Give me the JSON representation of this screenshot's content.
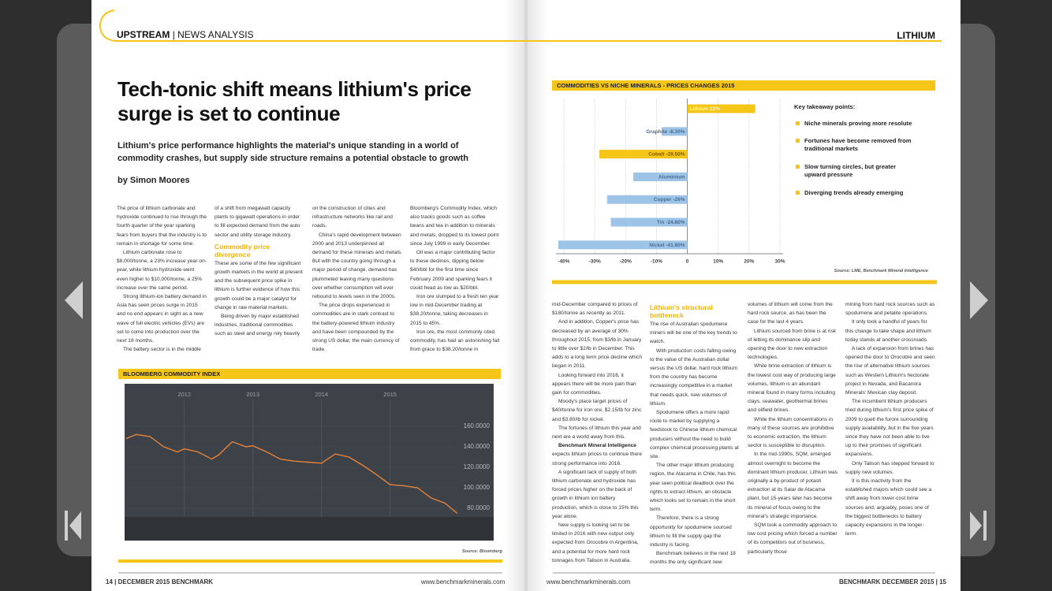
{
  "header": {
    "section": "UPSTREAM",
    "section_sub": "| NEWS ANALYSIS",
    "right": "LITHIUM"
  },
  "article": {
    "headline": [
      "Tech-tonic shift means lithium's price",
      "surge is set to continue"
    ],
    "standfirst": [
      "Lithium's price performance highlights the material's unique standing in a world of",
      "commodity crashes, but supply side structure remains a potential obstacle to growth"
    ],
    "byline": "by Simon Moores"
  },
  "left_columns": [
    [
      {
        "text": "The price of lithium carbonate and hydroxide continued to rise through the fourth quarter of the year sparking fears from buyers that the industry is to remain in shortage for some time."
      },
      {
        "text": "Lithium carbonate rose to $8,000/tonne, a 23% increase year-on-year, while lithium hydroxide went even higher to $10,000/tonne, a 25% increase over the same period."
      },
      {
        "text": "Strong lithium-ion battery demand in Asia has seen prices surge in 2015 and no end appears in sight as a new wave of full electric vehicles (EVs) are set to come into production over the next 18 months."
      },
      {
        "text": "The battery sector is in the middle"
      }
    ],
    [
      {
        "text": "of a shift from megawatt capacity plants to gigawatt operations in order to fill expected demand from the auto sector and utility storage industry."
      },
      {
        "subhead": "Commodity price divergence"
      },
      {
        "text": "These are some of the few significant growth markets in the world at present and the subsequent price spike in lithium is further evidence of how this growth could be a major catalyst for change in raw material markets."
      },
      {
        "text": "Being driven by major established industries, traditional commodities such as steel and energy rely heavily"
      }
    ],
    [
      {
        "text": "on the construction of cities and infrastructure networks like rail and roads."
      },
      {
        "text": "China's rapid development between 2000 and 2013 underpinned all demand for these minerals and metals. But with the country going through a major period of change, demand has plummeted leaving many questions over whether consumption will ever rebound to levels seen in the 2000s."
      },
      {
        "text": "The price drops experienced in commodities are in stark contrast to the battery-powered lithium industry and have been compounded by the strong US dollar, the main currency of trade."
      }
    ],
    [
      {
        "text": "Bloomberg's Commodity Index, which also tracks goods such as coffee beans and tea in addition to minerals and metals, dropped to its lowest point since July 1999 in early December."
      },
      {
        "text": "Oil was a major contributing factor to these declines, dipping below $40/bbl for the first time since February 2009 and sparking fears it could head as low as $20/bbl."
      },
      {
        "text": "Iron ore slumped to a fresh ten year low in mid-December trading at $38.20/tonne, taking decreases in 2015 to 45%."
      },
      {
        "text": "Iron ore, the most commonly cited commodity, has had an astonishing fall from grace to $38.20/tonne in"
      }
    ]
  ],
  "right_columns": [
    [
      {
        "text": "mid-December compared to prices of $180/tonne as recently as 2011."
      },
      {
        "text": "And in addition, Copper's price has decreased by an average of 30% throughout 2015, from $3/lb in January to little over $2/lb in December. This adds to a long term price decline which began in 2011."
      },
      {
        "text": "Looking forward into 2016, it appears there will be more pain than gain for commodities."
      },
      {
        "text": "Moody's place target prices of $40/tonne for iron ore, $2.15/lb for zinc and $3.80/lb for nickel."
      },
      {
        "text": "The fortunes of lithium this year and next are a world away from this."
      },
      {
        "lead": "Benchmark Mineral Intelligence",
        "text": "expects lithium prices to continue there strong performance into 2016."
      },
      {
        "text": "A significant lack of supply of both lithium carbonate and hydroxide has forced prices higher on the back of growth in lithium ion battery production, which is close to 15% this year alone."
      },
      {
        "text": "New supply is looking set to be limited in 2016 with new output only expected from Orocobre in Argentina, and a potential for more hard rock tonnages from Talison in Australia."
      }
    ],
    [
      {
        "subhead": "Lithium's structural bottleneck"
      },
      {
        "text": "The rise of Australian spodumene miners will be one of the key trends to watch."
      },
      {
        "text": "With production costs falling owing to the value of the Australian dollar versus the US dollar, hard rock lithium from the country has become increasingly competitive in a market that needs quick, new volumes of lithium."
      },
      {
        "text": "Spodumene offers a more rapid route to market by supplying a feedstock to Chinese lithium chemical producers without the need to build complex chemical processing plants at site."
      },
      {
        "text": "The other major lithium producing region, the Atacama in Chile, has this year seen political deadlock over the rights to extract lithium, an obstacle which looks set to remain in the short term."
      },
      {
        "text": "Therefore, there is a strong opportunity for spodumene sourced lithium to fill the supply gap the industry is facing."
      },
      {
        "text": "Benchmark believes in the next 18 months the only significant new"
      }
    ],
    [
      {
        "text": "volumes of lithium will come from the hard rock source, as has been the case for the last 4 years."
      },
      {
        "text": "Lithium sourced from brine is at risk of letting its dominance slip and opening the door to new extraction technologies."
      },
      {
        "text": "While brine extraction of lithium is the lowest cost way of producing large volumes, lithium is an abundant mineral found in many forms including clays, seawater, geothermal brines and oilfield brines."
      },
      {
        "text": "While the lithium concentrations in many of these sources are prohibitive to economic extraction, the lithium sector is susceptible to disruption."
      },
      {
        "text": "In the mid-1990s, SQM, emerged almost overnight to become the dominant lithium producer. Lithium was originally a by-product of potash extraction at its Salar de Atacama plant, but 15-years later has become its mineral of focus owing to the mineral's strategic importance."
      },
      {
        "text": "SQM took a commodity approach to low cost pricing which forced a number of its competitors out of business, particularly those"
      }
    ],
    [
      {
        "text": "mining from hard rock sources such as spodumene and petalite operations."
      },
      {
        "text": "It only took a handful of years for this change to take shape and lithium today stands at another crossroads."
      },
      {
        "text": "A lack of expansion from brines has opened the door to Orocobre and seen the rise of alternative lithium sources such as Western Lithium's hectorate project in Nevada, and Bacanora Minerals' Mexican clay deposit."
      },
      {
        "text": "The incumbent lithium producers tried during lithium's first price spike of 2009 to quell the furore surrounding supply availability, but in the five years since they have not been able to live up to their promises of significant expansions."
      },
      {
        "text": "Only Talison has stepped forward to supply new volumes."
      },
      {
        "text": "It is this inactivity from the established majors which could see a shift away from lower-cost brine sources and, arguably, poses one of the biggest bottlenecks to battery capacity expansions in the longer-term."
      }
    ]
  ],
  "bloomberg_chart": {
    "type": "line",
    "title": "BLOOMBERG COMMODITY INDEX",
    "source": "Source: Bloomberg",
    "color": "#e8833a",
    "x": [
      2011.15,
      2011.3,
      2011.5,
      2011.7,
      2011.9,
      2012.0,
      2012.2,
      2012.4,
      2012.5,
      2012.7,
      2012.9,
      2013.0,
      2013.2,
      2013.4,
      2013.6,
      2013.8,
      2014.0,
      2014.2,
      2014.4,
      2014.6,
      2014.8,
      2015.0,
      2015.2,
      2015.4,
      2015.6,
      2015.8,
      2015.98
    ],
    "values": [
      148,
      152,
      150,
      140,
      135,
      138,
      135,
      128,
      132,
      145,
      140,
      141,
      135,
      128,
      126,
      125,
      124,
      133,
      130,
      122,
      113,
      103,
      102,
      100,
      90,
      85,
      75
    ],
    "xlim": [
      2011.13,
      2016.51
    ],
    "ylim": [
      48.5,
      201.5
    ],
    "xticks": [
      2012,
      2013,
      2014,
      2015
    ],
    "yticks": [
      {
        "value": 80,
        "label": "80.0000"
      },
      {
        "value": 100,
        "label": "100.0000"
      },
      {
        "value": 120,
        "label": "120.0000"
      },
      {
        "value": 140,
        "label": "140.0000"
      },
      {
        "value": 160,
        "label": "160.0000"
      }
    ]
  },
  "bar_chart": {
    "type": "bar",
    "title": "COMMODITIES VS NICHE MINERALS - PRICES CHANGES 2015",
    "source": "Source: LME, Benchmark Mineral Intelligence",
    "categories": [
      "Lithium",
      "Graphite",
      "Cobalt",
      "Aluminium",
      "Copper",
      "Tin",
      "Nickel"
    ],
    "values": [
      22,
      -8.3,
      -28.5,
      -17.5,
      -26,
      -24.8,
      -41.8
    ],
    "value_labels": [
      "22%",
      "-8.30%",
      "-28.50%",
      null,
      "-26%",
      "-24.80%",
      "-41.80%"
    ],
    "colors": [
      "#f5c518",
      "#9dc3e6",
      "#f5c518",
      "#9dc3e6",
      "#9dc3e6",
      "#9dc3e6",
      "#9dc3e6"
    ],
    "xlim": [
      -40,
      30
    ],
    "xticks": [
      {
        "value": -40,
        "label": "-40%"
      },
      {
        "value": -30,
        "label": "-30%"
      },
      {
        "value": -20,
        "label": "-20%"
      },
      {
        "value": -10,
        "label": "-10%"
      },
      {
        "value": 0,
        "label": "0"
      },
      {
        "value": 10,
        "label": "10%"
      },
      {
        "value": 20,
        "label": "20%"
      },
      {
        "value": 30,
        "label": "30%"
      }
    ],
    "grid": true
  },
  "takeaways": {
    "title": "Key takeaway points:",
    "items": [
      "Niche minerals proving more resolute",
      "Fortunes have become removed from traditional markets",
      "Slow turning circles, but greater upward pressure",
      "Diverging trends already emerging"
    ]
  },
  "footer": {
    "left_page": "14 | DECEMBER 2015 BENCHMARK",
    "left_url": "www.benchmarkminerals.com",
    "right_url": "www.benchmarkminerals.com",
    "right_page": "BENCHMARK DECEMBER 2015 | 15"
  }
}
